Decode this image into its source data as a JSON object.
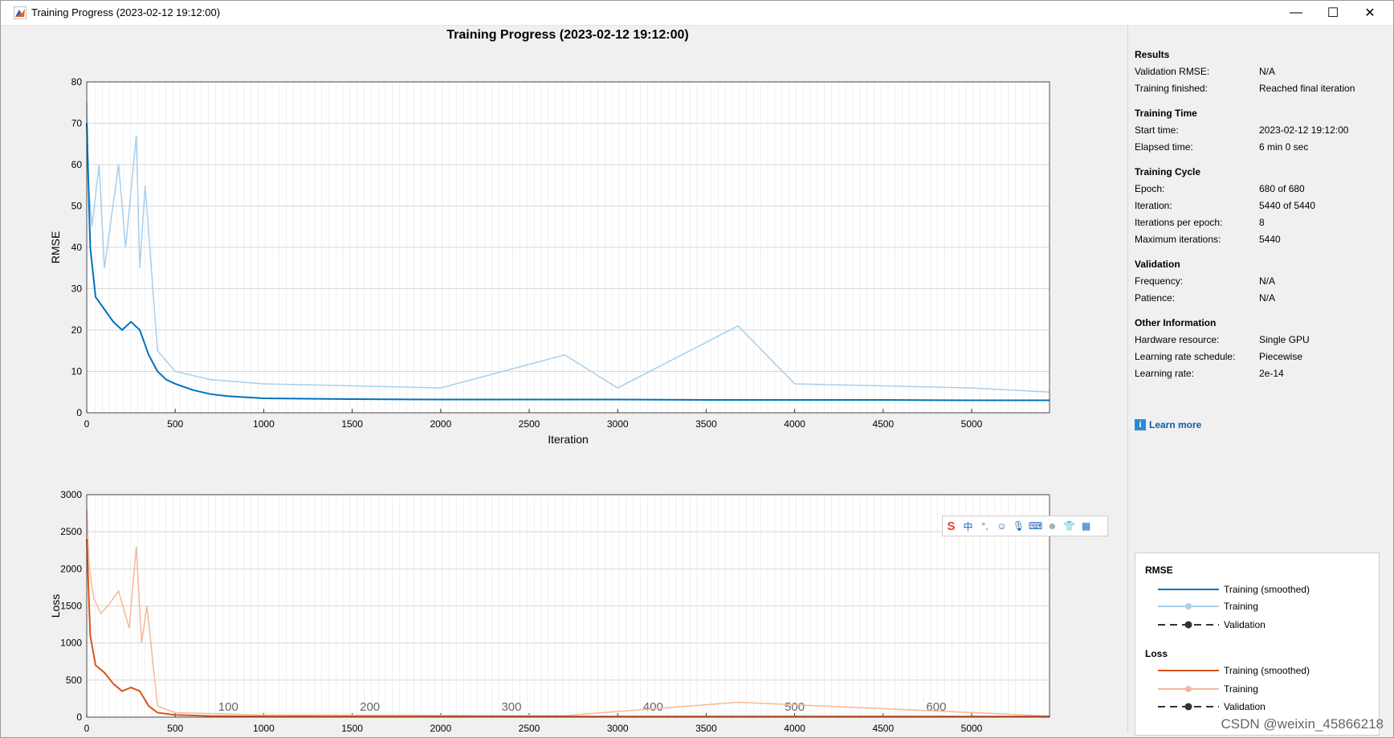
{
  "window": {
    "title": "Training Progress (2023-02-12 19:12:00)",
    "minimize_glyph": "—",
    "maximize_glyph": "☐",
    "close_glyph": "✕"
  },
  "plot_title": "Training Progress (2023-02-12 19:12:00)",
  "chart_data": [
    {
      "type": "line",
      "name": "RMSE",
      "xlabel": "Iteration",
      "ylabel": "RMSE",
      "xlim": [
        0,
        5440
      ],
      "ylim": [
        0,
        80
      ],
      "xticks": [
        0,
        500,
        1000,
        1500,
        2000,
        2500,
        3000,
        3500,
        4000,
        4500,
        5000
      ],
      "yticks": [
        0,
        10,
        20,
        30,
        40,
        50,
        60,
        70,
        80
      ],
      "grid": true,
      "series": [
        {
          "name": "Training (smoothed)",
          "color": "#0072bd",
          "x": [
            0,
            20,
            50,
            100,
            150,
            200,
            250,
            300,
            350,
            400,
            450,
            500,
            600,
            700,
            800,
            1000,
            1500,
            2000,
            2500,
            3000,
            3500,
            4000,
            4500,
            5000,
            5440
          ],
          "y": [
            70,
            40,
            28,
            25,
            22,
            20,
            22,
            20,
            14,
            10,
            8,
            7,
            5.5,
            4.5,
            4,
            3.5,
            3.3,
            3.2,
            3.2,
            3.2,
            3.1,
            3.1,
            3.1,
            3.0,
            3.0
          ]
        },
        {
          "name": "Training",
          "color": "#a8cfec",
          "x": [
            0,
            10,
            30,
            70,
            100,
            180,
            220,
            280,
            300,
            330,
            400,
            500,
            700,
            1000,
            2000,
            2700,
            3000,
            3680,
            4000,
            5000,
            5440
          ],
          "y": [
            75,
            55,
            45,
            60,
            35,
            60,
            40,
            67,
            35,
            55,
            15,
            10,
            8,
            7,
            6,
            14,
            6,
            21,
            7,
            6,
            5
          ]
        }
      ]
    },
    {
      "type": "line",
      "name": "Loss",
      "xlabel": "Iteration",
      "ylabel": "Loss",
      "xlim": [
        0,
        5440
      ],
      "ylim": [
        0,
        3000
      ],
      "xticks": [
        0,
        500,
        1000,
        1500,
        2000,
        2500,
        3000,
        3500,
        4000,
        4500,
        5000
      ],
      "yticks": [
        0,
        500,
        1000,
        1500,
        2000,
        2500,
        3000
      ],
      "epoch_labels": [
        "100",
        "200",
        "300",
        "400",
        "500",
        "600"
      ],
      "grid": true,
      "series": [
        {
          "name": "Training (smoothed)",
          "color": "#d95319",
          "x": [
            0,
            20,
            50,
            100,
            150,
            200,
            250,
            300,
            350,
            400,
            500,
            700,
            1000,
            2000,
            3000,
            4000,
            5000,
            5440
          ],
          "y": [
            2400,
            1100,
            700,
            600,
            450,
            350,
            400,
            350,
            150,
            60,
            30,
            15,
            10,
            8,
            8,
            8,
            8,
            8
          ]
        },
        {
          "name": "Training",
          "color": "#f5b89a",
          "x": [
            0,
            15,
            40,
            80,
            120,
            180,
            240,
            280,
            310,
            340,
            400,
            500,
            1000,
            2700,
            3680,
            5440
          ],
          "y": [
            2800,
            2000,
            1600,
            1400,
            1500,
            1700,
            1200,
            2300,
            1000,
            1500,
            150,
            60,
            30,
            20,
            200,
            15
          ]
        }
      ]
    }
  ],
  "sidebar": {
    "sections": [
      {
        "title": "Results",
        "rows": [
          {
            "k": "Validation RMSE:",
            "v": "N/A"
          },
          {
            "k": "Training finished:",
            "v": "Reached final iteration"
          }
        ]
      },
      {
        "title": "Training Time",
        "rows": [
          {
            "k": "Start time:",
            "v": "2023-02-12 19:12:00"
          },
          {
            "k": "Elapsed time:",
            "v": "6 min 0 sec"
          }
        ]
      },
      {
        "title": "Training Cycle",
        "rows": [
          {
            "k": "Epoch:",
            "v": "680 of 680"
          },
          {
            "k": "Iteration:",
            "v": "5440 of 5440"
          },
          {
            "k": "Iterations per epoch:",
            "v": "8"
          },
          {
            "k": "Maximum iterations:",
            "v": "5440"
          }
        ]
      },
      {
        "title": "Validation",
        "rows": [
          {
            "k": "Frequency:",
            "v": "N/A"
          },
          {
            "k": "Patience:",
            "v": "N/A"
          }
        ]
      },
      {
        "title": "Other Information",
        "rows": [
          {
            "k": "Hardware resource:",
            "v": "Single GPU"
          },
          {
            "k": "Learning rate schedule:",
            "v": "Piecewise"
          },
          {
            "k": "Learning rate:",
            "v": "2e-14"
          }
        ]
      }
    ],
    "learn_more": "Learn more",
    "legend": {
      "rmse_title": "RMSE",
      "loss_title": "Loss",
      "smoothed": "Training (smoothed)",
      "training": "Training",
      "validation": "Validation"
    }
  },
  "ime": {
    "chinese": "中",
    "punct": "°,"
  },
  "watermark": "CSDN @weixin_45866218"
}
